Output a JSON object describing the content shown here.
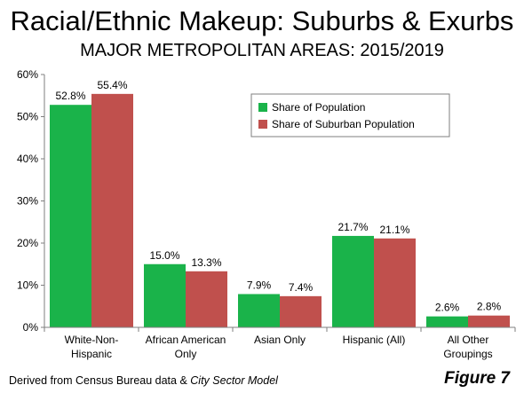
{
  "chart_data": {
    "type": "bar",
    "title": "Racial/Ethnic Makeup: Suburbs & Exurbs",
    "subtitle": "MAJOR METROPOLITAN AREAS: 2015/2019",
    "categories": [
      [
        "White-Non-",
        "Hispanic"
      ],
      [
        "African American",
        "Only"
      ],
      [
        "Asian Only"
      ],
      [
        "Hispanic (All)"
      ],
      [
        "All Other",
        "Groupings"
      ]
    ],
    "series": [
      {
        "name": "Share of Population",
        "color": "#1ab34a",
        "values": [
          52.8,
          15.0,
          7.9,
          21.7,
          2.6
        ],
        "labels": [
          "52.8%",
          "15.0%",
          "7.9%",
          "21.7%",
          "2.6%"
        ]
      },
      {
        "name": "Share of Suburban Population",
        "color": "#c0504d",
        "values": [
          55.4,
          13.3,
          7.4,
          21.1,
          2.8
        ],
        "labels": [
          "55.4%",
          "13.3%",
          "7.4%",
          "21.1%",
          "2.8%"
        ]
      }
    ],
    "ylim": [
      0,
      60
    ],
    "yticks": [
      0,
      10,
      20,
      30,
      40,
      50,
      60
    ],
    "ytick_labels": [
      "0%",
      "10%",
      "20%",
      "30%",
      "40%",
      "50%",
      "60%"
    ],
    "xlabel": "",
    "ylabel": "",
    "grid": false,
    "legend": "inside top-right"
  },
  "footer": {
    "prefix": "Derived from Census Bureau data & ",
    "model": "City Sector Model"
  },
  "figure_label": "Figure 7"
}
